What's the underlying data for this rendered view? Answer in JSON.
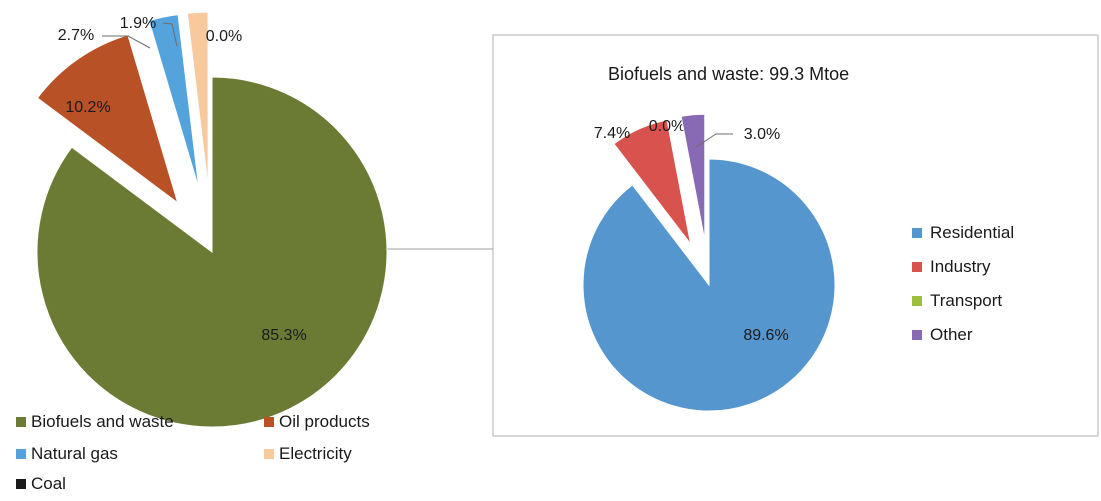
{
  "chart_data": [
    {
      "type": "pie",
      "title": "",
      "series": [
        {
          "label": "Biofuels and waste",
          "value": 85.3,
          "display": "85.3%",
          "color": "#6b7b34"
        },
        {
          "label": "Oil products",
          "value": 10.2,
          "display": "10.2%",
          "color": "#b85125"
        },
        {
          "label": "Natural gas",
          "value": 2.7,
          "display": "2.7%",
          "color": "#54a3dc"
        },
        {
          "label": "Electricity",
          "value": 1.9,
          "display": "1.9%",
          "color": "#f8c99d"
        },
        {
          "label": "Coal",
          "value": 0.0,
          "display": "0.0%",
          "color": "#1a1a1a"
        }
      ],
      "exploded": [
        "Oil products",
        "Natural gas",
        "Electricity",
        "Coal"
      ],
      "legend_position": "bottom"
    },
    {
      "type": "pie",
      "title": "Biofuels and waste: 99.3 Mtoe",
      "series": [
        {
          "label": "Residential",
          "value": 89.6,
          "display": "89.6%",
          "color": "#5596cf"
        },
        {
          "label": "Industry",
          "value": 7.4,
          "display": "7.4%",
          "color": "#d9534e"
        },
        {
          "label": "Transport",
          "value": 0.0,
          "display": "0.0%",
          "color": "#9cbf3c"
        },
        {
          "label": "Other",
          "value": 3.0,
          "display": "3.0%",
          "color": "#8869b4"
        }
      ],
      "exploded": [
        "Industry",
        "Transport",
        "Other"
      ],
      "legend_position": "right"
    }
  ]
}
